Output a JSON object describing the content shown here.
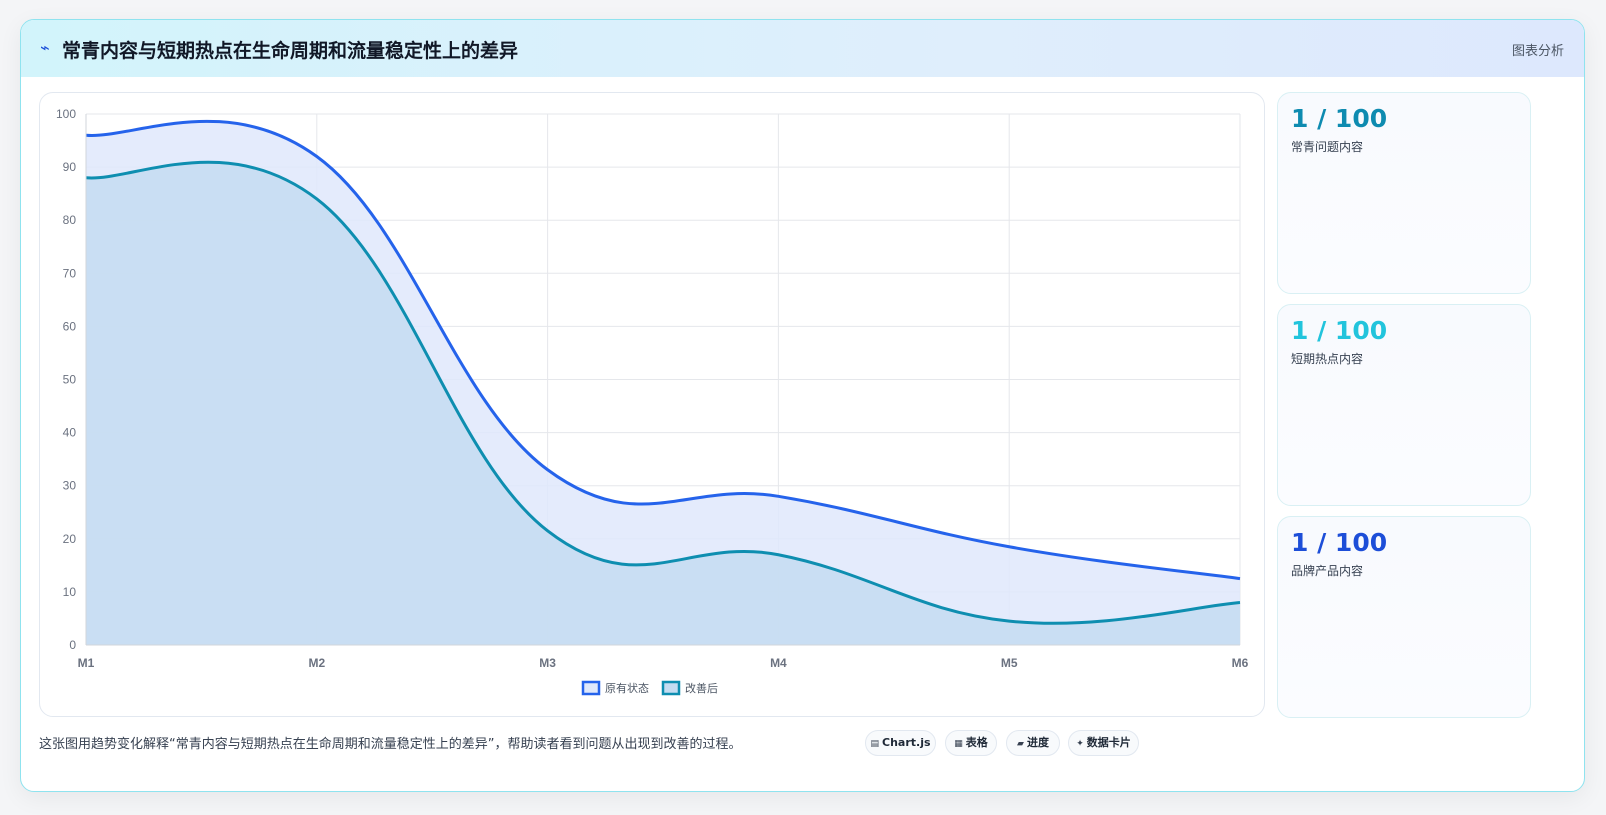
{
  "header": {
    "icon": "lightning-icon",
    "title": "常青内容与短期热点在生命周期和流量稳定性上的差异",
    "tag": "图表分析"
  },
  "chart_data": {
    "type": "area",
    "categories": [
      "M1",
      "M2",
      "M3",
      "M4",
      "M5",
      "M6"
    ],
    "series": [
      {
        "name": "原有状态",
        "values": [
          96,
          92,
          33,
          28,
          18.5,
          12.5
        ],
        "color": "#2563eb",
        "fill": "#dfe8fb"
      },
      {
        "name": "改善后",
        "values": [
          88,
          84,
          21.5,
          17,
          4.5,
          8
        ],
        "color": "#0e8eb0",
        "fill": "#c4dcf1"
      }
    ],
    "ylim": [
      0,
      100
    ],
    "yticks": [
      0,
      10,
      20,
      30,
      40,
      50,
      60,
      70,
      80,
      90,
      100
    ],
    "grid": true,
    "legend_position": "bottom"
  },
  "stats": [
    {
      "value": "1 / 100",
      "label": "常青问题内容",
      "color": "#0e8bb0"
    },
    {
      "value": "1 / 100",
      "label": "短期热点内容",
      "color": "#22c4dc"
    },
    {
      "value": "1 / 100",
      "label": "品牌产品内容",
      "color": "#1d4ed8"
    }
  ],
  "footer": {
    "text": "这张图用趋势变化解释“常青内容与短期热点在生命周期和流量稳定性上的差异”，帮助读者看到问题从出现到改善的过程。",
    "chips": [
      {
        "icon": "chart-icon",
        "label": "Chart.js"
      },
      {
        "icon": "table-icon",
        "label": "表格"
      },
      {
        "icon": "progress-icon",
        "label": "进度"
      },
      {
        "icon": "sparkle-icon",
        "label": "数据卡片"
      }
    ]
  }
}
